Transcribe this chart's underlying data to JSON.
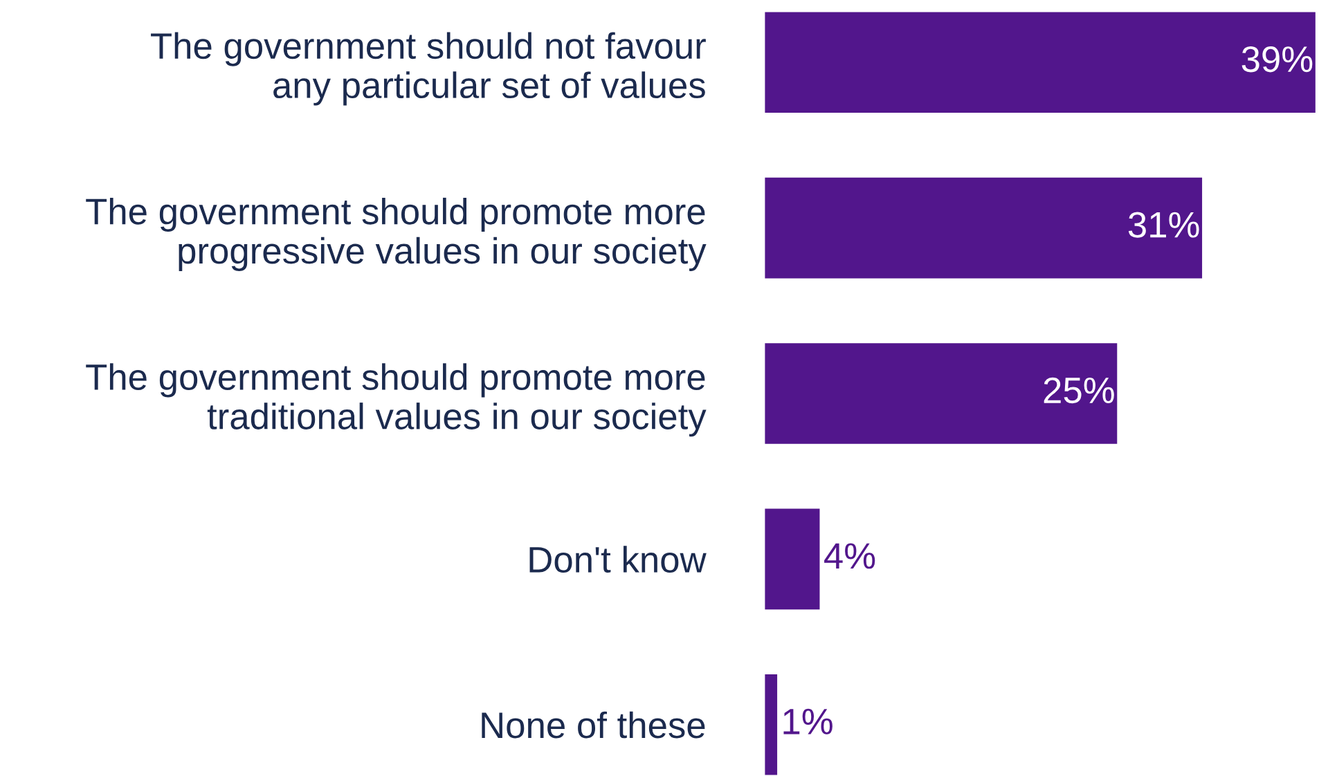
{
  "chart_data": {
    "type": "bar",
    "orientation": "horizontal",
    "categories": [
      "The government should not favour\nany particular set of values",
      "The government should promote more\nprogressive values in our society",
      "The government should promote more\ntraditional values in our society",
      "Don't know",
      "None of these"
    ],
    "values": [
      39,
      31,
      25,
      4,
      1
    ],
    "color": "#52168c",
    "value_labels": [
      "39%",
      "31%",
      "25%",
      "4%",
      "1%"
    ],
    "grid": false,
    "legend": false
  }
}
